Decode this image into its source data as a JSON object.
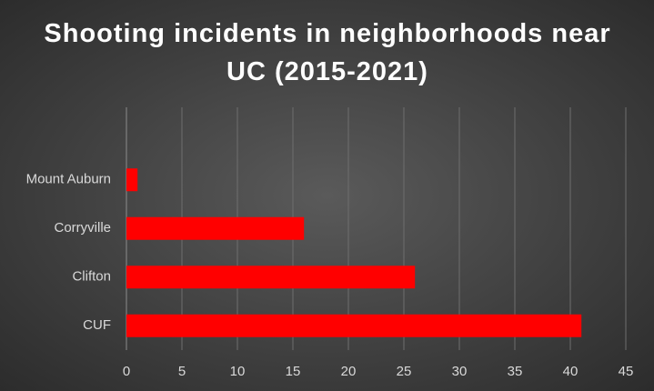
{
  "chart_data": {
    "type": "hbar",
    "title": "Shooting incidents in neighborhoods near UC (2015-2021)",
    "categories": [
      "Mount Auburn",
      "Corryville",
      "Clifton",
      "CUF"
    ],
    "values": [
      1,
      16,
      26,
      41
    ],
    "color": "#ff0000",
    "xlim": [
      0,
      45
    ],
    "xticks": [
      0,
      5,
      10,
      15,
      20,
      25,
      30,
      35,
      40,
      45
    ],
    "grid": true
  }
}
